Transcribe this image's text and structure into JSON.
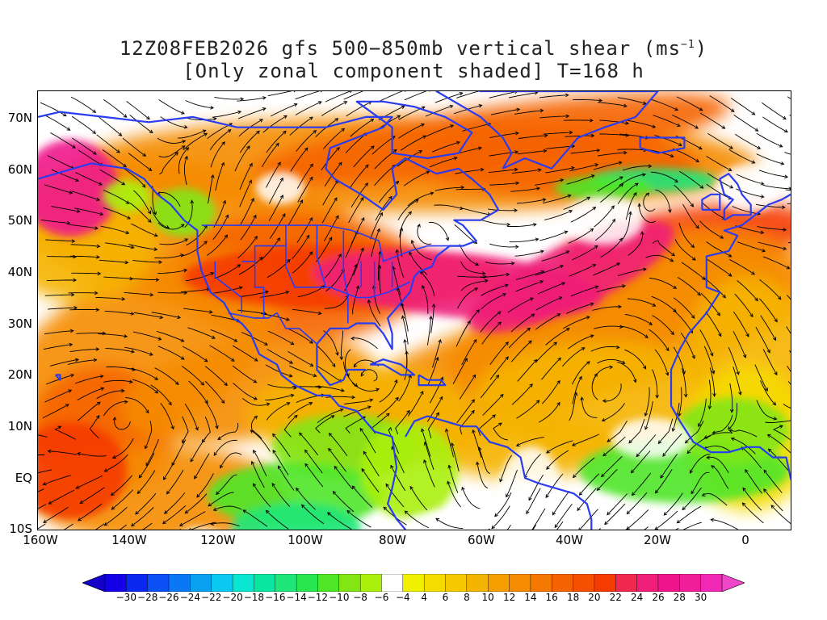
{
  "title": {
    "line1_prefix": "12Z08FEB2026 gfs 500−850mb vertical shear (ms",
    "line1_sup": "−1",
    "line1_suffix": ")",
    "line2": "[Only zonal component shaded] T=168 h"
  },
  "axes": {
    "y_labels": [
      "70N",
      "60N",
      "50N",
      "40N",
      "30N",
      "20N",
      "10N",
      "EQ",
      "10S"
    ],
    "x_labels": [
      "160W",
      "140W",
      "120W",
      "100W",
      "80W",
      "60W",
      "40W",
      "20W",
      "0"
    ],
    "lat_range": [
      -10,
      75
    ],
    "lon_range": [
      -160,
      10
    ]
  },
  "colorbar": {
    "labels": [
      "−30",
      "−28",
      "−26",
      "−24",
      "−22",
      "−20",
      "−18",
      "−16",
      "−14",
      "−12",
      "−10",
      "−8",
      "−6",
      "−4",
      "4",
      "6",
      "8",
      "10",
      "12",
      "14",
      "16",
      "18",
      "20",
      "22",
      "24",
      "26",
      "28",
      "30"
    ],
    "colors": [
      "#1400e6",
      "#0a28f0",
      "#0a50f5",
      "#0a78f5",
      "#0aa0f0",
      "#0ac8f0",
      "#0ae6d2",
      "#0ae6a0",
      "#1ee678",
      "#28e650",
      "#50e628",
      "#82e614",
      "#aaf00a",
      "#ffffff",
      "#f0f000",
      "#f5dc00",
      "#f5c800",
      "#f5b400",
      "#f5a000",
      "#f58c00",
      "#f57800",
      "#f56400",
      "#f55000",
      "#f53c00",
      "#f02850",
      "#f01e78",
      "#f0148c",
      "#f01e9b",
      "#f028b4"
    ],
    "left_arrow_color": "#1400c8",
    "right_arrow_color": "#f046c8"
  },
  "map_style": {
    "coast_color": "#2a3cf0",
    "streamline_color": "#000000",
    "palette": {
      "deep_pink": "#f01e78",
      "pink": "#f0148c",
      "red": "#f53c00",
      "red_orange": "#f56400",
      "orange": "#f58c00",
      "light_orange": "#f5b400",
      "yellow": "#f5dc00",
      "light_yellow": "#f0f000",
      "green": "#50e628",
      "light_green": "#82e614",
      "lime": "#aaf00a",
      "aqua_green": "#1ee678"
    }
  }
}
